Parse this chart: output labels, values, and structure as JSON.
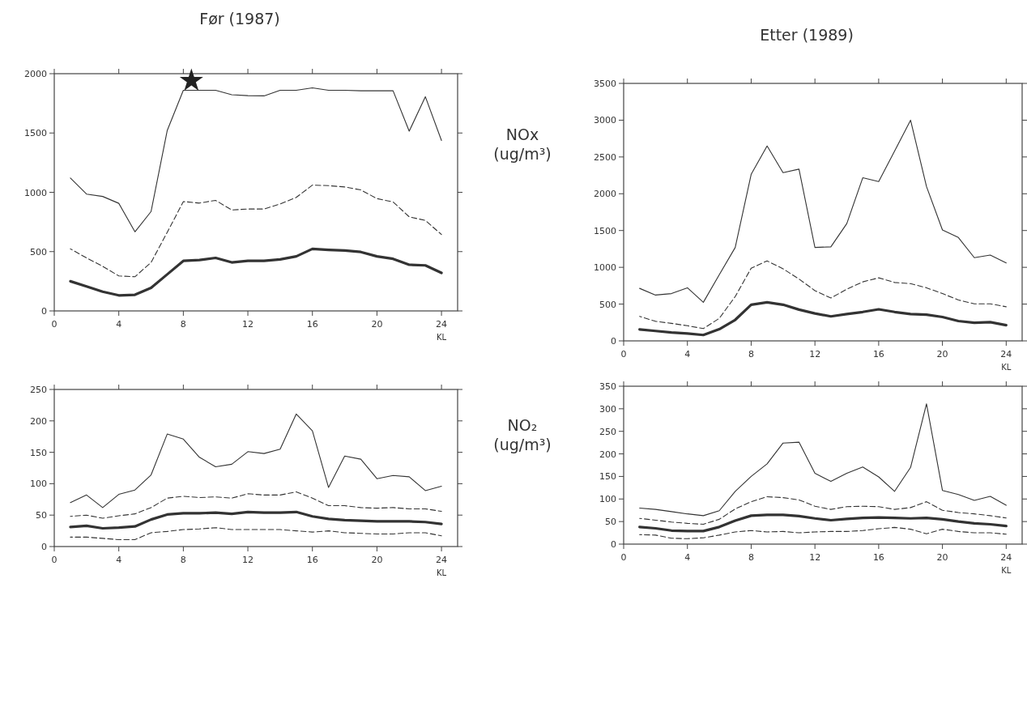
{
  "chart_data": [
    {
      "type": "line",
      "title": "Før (1987)",
      "xlabel": "KL",
      "x": [
        1,
        2,
        3,
        4,
        5,
        6,
        7,
        8,
        9,
        10,
        11,
        12,
        13,
        14,
        15,
        16,
        17,
        18,
        19,
        20,
        21,
        22,
        23,
        24
      ],
      "xlim": [
        0,
        25
      ],
      "xticks": [
        0,
        4,
        8,
        12,
        16,
        20,
        24
      ],
      "ylim": [
        0,
        2000
      ],
      "yticks": [
        0,
        500,
        1000,
        1500,
        2000
      ],
      "grid": false,
      "marker": "none",
      "series": [
        {
          "color": "#333333",
          "line_style": "solid",
          "values": [
            1120,
            985,
            965,
            907,
            667,
            838,
            1520,
            1860,
            1860,
            1860,
            1823,
            1815,
            1813,
            1860,
            1860,
            1880,
            1860,
            1860,
            1856,
            1856,
            1856,
            1515,
            1806,
            1437
          ]
        },
        {
          "color": "#333333",
          "line_style": "dashed",
          "values": [
            523,
            447,
            376,
            295,
            288,
            409,
            662,
            922,
            909,
            932,
            851,
            859,
            859,
            902,
            957,
            1061,
            1056,
            1045,
            1020,
            947,
            919,
            793,
            763,
            644
          ]
        },
        {
          "color": "#333333",
          "line_style": "solid",
          "values": [
            250,
            207,
            162,
            131,
            136,
            194,
            308,
            422,
            429,
            447,
            409,
            422,
            422,
            434,
            460,
            523,
            515,
            510,
            497,
            460,
            439,
            389,
            384,
            321
          ]
        }
      ]
    },
    {
      "type": "line",
      "title": "Etter (1989)",
      "ylabel": "NOx (ug/m³)",
      "xlabel": "KL",
      "x": [
        1,
        2,
        3,
        4,
        5,
        6,
        7,
        8,
        9,
        10,
        11,
        12,
        13,
        14,
        15,
        16,
        17,
        18,
        19,
        20,
        21,
        22,
        23,
        24
      ],
      "xlim": [
        0,
        25
      ],
      "xticks": [
        0,
        4,
        8,
        12,
        16,
        20,
        24
      ],
      "ylim": [
        0,
        3500
      ],
      "yticks": [
        0,
        500,
        1000,
        1500,
        2000,
        2500,
        3000,
        3500
      ],
      "grid": false,
      "marker": "none",
      "series": [
        {
          "color": "#333333",
          "line_style": "solid",
          "values": [
            714,
            623,
            643,
            722,
            524,
            900,
            1270,
            2264,
            2650,
            2287,
            2335,
            1270,
            1278,
            1595,
            2217,
            2165,
            2580,
            3000,
            2098,
            1508,
            1405,
            1131,
            1167,
            1060
          ]
        },
        {
          "color": "#333333",
          "line_style": "dashed",
          "values": [
            333,
            266,
            238,
            206,
            167,
            306,
            603,
            988,
            1087,
            980,
            841,
            683,
            583,
            702,
            802,
            857,
            794,
            778,
            722,
            643,
            556,
            504,
            504,
            464
          ]
        },
        {
          "color": "#333333",
          "line_style": "solid",
          "values": [
            155,
            135,
            115,
            100,
            80,
            159,
            286,
            492,
            524,
            492,
            425,
            373,
            333,
            365,
            393,
            429,
            393,
            365,
            357,
            325,
            270,
            246,
            254,
            214
          ]
        }
      ]
    },
    {
      "type": "line",
      "xlabel": "KL",
      "x": [
        1,
        2,
        3,
        4,
        5,
        6,
        7,
        8,
        9,
        10,
        11,
        12,
        13,
        14,
        15,
        16,
        17,
        18,
        19,
        20,
        21,
        22,
        23,
        24
      ],
      "xlim": [
        0,
        25
      ],
      "xticks": [
        0,
        4,
        8,
        12,
        16,
        20,
        24
      ],
      "ylim": [
        0,
        250
      ],
      "yticks": [
        0,
        50,
        100,
        150,
        200,
        250
      ],
      "grid": false,
      "marker": "none",
      "series": [
        {
          "color": "#333333",
          "line_style": "solid",
          "values": [
            70,
            82,
            62,
            83,
            90,
            114,
            179,
            171,
            142,
            127,
            131,
            151,
            148,
            155,
            211,
            184,
            94,
            144,
            139,
            108,
            113,
            111,
            89,
            96
          ]
        },
        {
          "color": "#333333",
          "line_style": "dashed",
          "values": [
            48,
            50,
            45,
            49,
            52,
            62,
            77,
            80,
            78,
            79,
            77,
            84,
            82,
            82,
            87,
            77,
            65,
            65,
            62,
            61,
            62,
            60,
            60,
            56
          ]
        },
        {
          "color": "#333333",
          "line_style": "solid",
          "values": [
            31,
            33,
            29,
            30,
            32,
            43,
            51,
            53,
            53,
            54,
            52,
            55,
            54,
            54,
            55,
            48,
            44,
            42,
            41,
            40,
            40,
            40,
            39,
            36
          ]
        },
        {
          "color": "#333333",
          "line_style": "dashed",
          "values": [
            15,
            15,
            13,
            11,
            11,
            22,
            24,
            27,
            28,
            30,
            27,
            27,
            27,
            27,
            25,
            23,
            25,
            22,
            21,
            20,
            20,
            22,
            22,
            17
          ]
        }
      ]
    },
    {
      "type": "line",
      "ylabel": "NO₂ (ug/m³)",
      "xlabel": "KL",
      "x": [
        1,
        2,
        3,
        4,
        5,
        6,
        7,
        8,
        9,
        10,
        11,
        12,
        13,
        14,
        15,
        16,
        17,
        18,
        19,
        20,
        21,
        22,
        23,
        24
      ],
      "xlim": [
        0,
        25
      ],
      "xticks": [
        0,
        4,
        8,
        12,
        16,
        20,
        24
      ],
      "ylim": [
        0,
        350
      ],
      "yticks": [
        0,
        50,
        100,
        150,
        200,
        250,
        300,
        350
      ],
      "grid": false,
      "marker": "none",
      "series": [
        {
          "color": "#333333",
          "line_style": "solid",
          "values": [
            80,
            77,
            72,
            67,
            63,
            74,
            117,
            150,
            178,
            224,
            226,
            157,
            139,
            157,
            171,
            149,
            117,
            170,
            311,
            119,
            110,
            97,
            106,
            86
          ]
        },
        {
          "color": "#333333",
          "line_style": "dashed",
          "values": [
            57,
            53,
            49,
            46,
            44,
            55,
            78,
            94,
            105,
            103,
            98,
            84,
            77,
            83,
            84,
            83,
            77,
            81,
            94,
            75,
            70,
            67,
            63,
            58
          ]
        },
        {
          "color": "#333333",
          "line_style": "solid",
          "values": [
            38,
            35,
            30,
            29,
            29,
            38,
            52,
            63,
            65,
            65,
            62,
            57,
            53,
            56,
            58,
            59,
            58,
            57,
            58,
            55,
            50,
            46,
            44,
            40
          ]
        },
        {
          "color": "#333333",
          "line_style": "dashed",
          "values": [
            21,
            20,
            13,
            12,
            14,
            20,
            27,
            30,
            27,
            28,
            25,
            27,
            28,
            28,
            30,
            34,
            37,
            33,
            23,
            33,
            28,
            25,
            25,
            22
          ]
        }
      ]
    }
  ]
}
